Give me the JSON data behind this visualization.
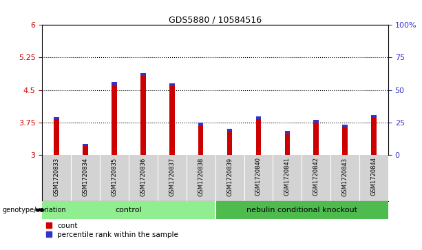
{
  "title": "GDS5880 / 10584516",
  "samples": [
    "GSM1720833",
    "GSM1720834",
    "GSM1720835",
    "GSM1720836",
    "GSM1720837",
    "GSM1720838",
    "GSM1720839",
    "GSM1720840",
    "GSM1720841",
    "GSM1720842",
    "GSM1720843",
    "GSM1720844"
  ],
  "count_values": [
    3.83,
    3.2,
    4.63,
    4.83,
    4.6,
    3.68,
    3.55,
    3.83,
    3.5,
    3.75,
    3.65,
    3.87
  ],
  "percentile_values": [
    0.05,
    0.05,
    0.05,
    0.06,
    0.06,
    0.06,
    0.05,
    0.06,
    0.05,
    0.06,
    0.05,
    0.06
  ],
  "ymin": 3.0,
  "ymax": 6.0,
  "yticks": [
    3.0,
    3.75,
    4.5,
    5.25,
    6.0
  ],
  "ytick_labels": [
    "3",
    "3.75",
    "4.5",
    "5.25",
    "6"
  ],
  "right_yticks": [
    0,
    25,
    50,
    75,
    100
  ],
  "right_ytick_labels": [
    "0",
    "25",
    "50",
    "75",
    "100%"
  ],
  "dotted_lines": [
    3.75,
    4.5,
    5.25
  ],
  "n_control": 6,
  "n_knockout": 6,
  "control_label": "control",
  "knockout_label": "nebulin conditional knockout",
  "genotype_label": "genotype/variation",
  "legend_count": "count",
  "legend_percentile": "percentile rank within the sample",
  "bar_color_red": "#cc0000",
  "bar_color_blue": "#3333cc",
  "control_bg": "#90EE90",
  "knockout_bg": "#4dbb4d",
  "plot_bg": "#ffffff",
  "tick_area_bg": "#d3d3d3",
  "bar_width": 0.18
}
